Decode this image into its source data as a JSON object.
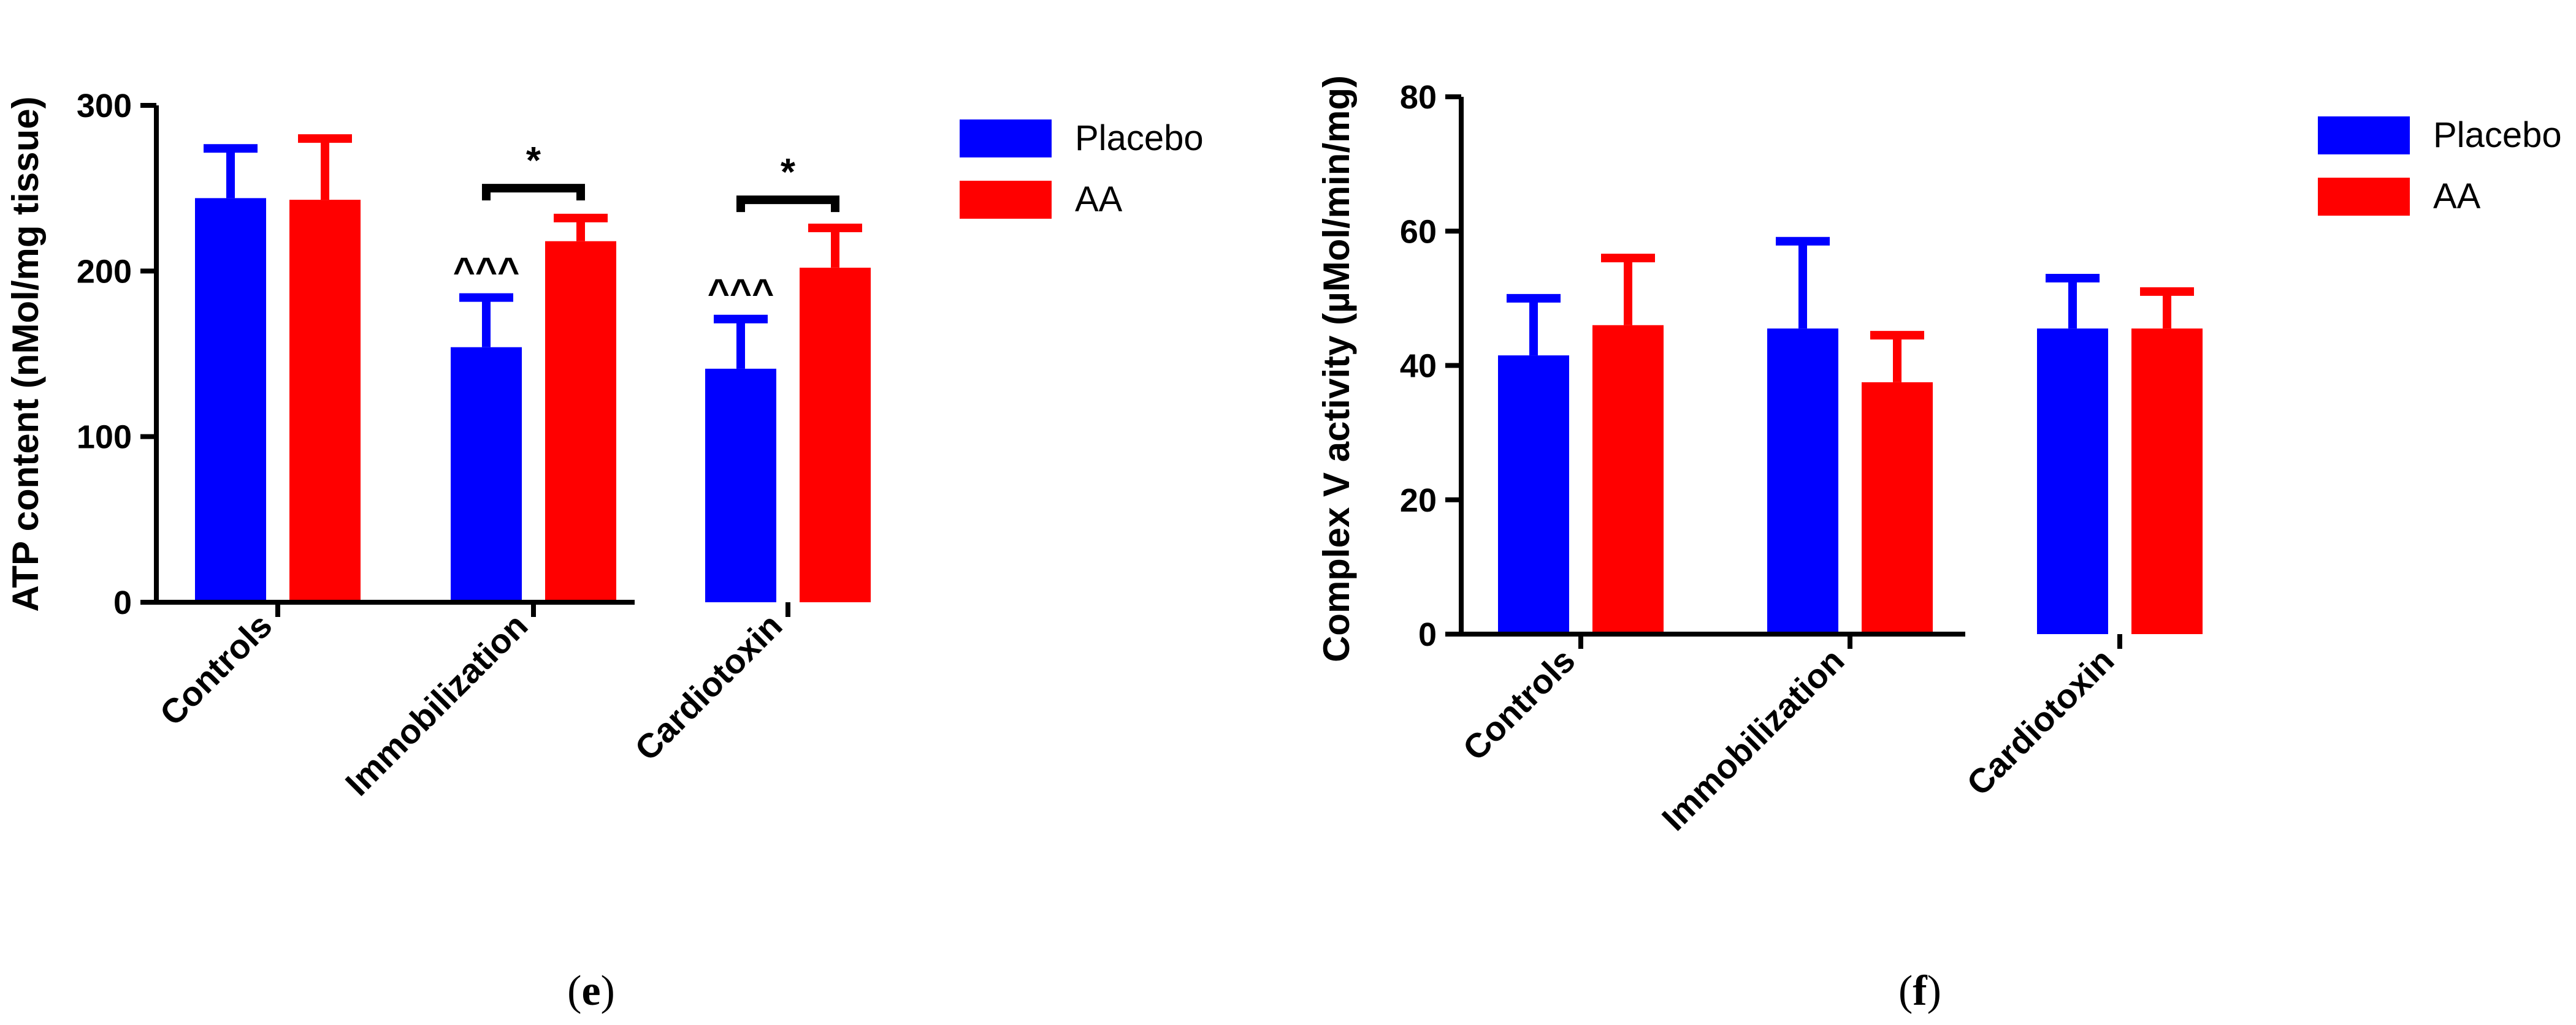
{
  "colors": {
    "placebo": "#0000ff",
    "aa": "#ff0000",
    "axis": "#000000"
  },
  "chart_data": [
    {
      "id": "e",
      "type": "bar",
      "panel_label": "e",
      "title": "",
      "xlabel": "",
      "ylabel": "ATP content (nMol/mg tissue)",
      "ylim": [
        0,
        300
      ],
      "yticks": [
        "0",
        "100",
        "200",
        "300"
      ],
      "categories": [
        "Controls",
        "Immobilization",
        "Cardiotoxin"
      ],
      "series": [
        {
          "name": "Placebo",
          "values": [
            244,
            154,
            141
          ],
          "errors": [
            30,
            30,
            30
          ]
        },
        {
          "name": "AA",
          "values": [
            243,
            218,
            202
          ],
          "errors": [
            37,
            14,
            24
          ]
        }
      ],
      "annotations": [
        {
          "category": "Immobilization",
          "text": "*",
          "type": "bracket",
          "bracket_value": 250
        },
        {
          "category": "Cardiotoxin",
          "text": "*",
          "type": "bracket",
          "bracket_value": 243
        },
        {
          "category": "Immobilization",
          "series": "Placebo",
          "text": "^^^"
        },
        {
          "category": "Cardiotoxin",
          "series": "Placebo",
          "text": "^^^"
        }
      ],
      "legend": [
        "Placebo",
        "AA"
      ],
      "legend_position": "top-right",
      "grid": false
    },
    {
      "id": "f",
      "type": "bar",
      "panel_label": "f",
      "title": "",
      "xlabel": "",
      "ylabel": "Complex V activity (µMol/min/mg)",
      "ylim": [
        0,
        80
      ],
      "yticks": [
        "0",
        "20",
        "40",
        "60",
        "80"
      ],
      "categories": [
        "Controls",
        "Immobilization",
        "Cardiotoxin"
      ],
      "series": [
        {
          "name": "Placebo",
          "values": [
            41.5,
            45.5,
            45.5
          ],
          "errors": [
            8.5,
            13,
            7.5
          ]
        },
        {
          "name": "AA",
          "values": [
            46,
            37.5,
            45.5
          ],
          "errors": [
            10,
            7,
            5.5
          ]
        }
      ],
      "annotations": [],
      "legend": [
        "Placebo",
        "AA"
      ],
      "legend_position": "top-right",
      "grid": false
    }
  ]
}
